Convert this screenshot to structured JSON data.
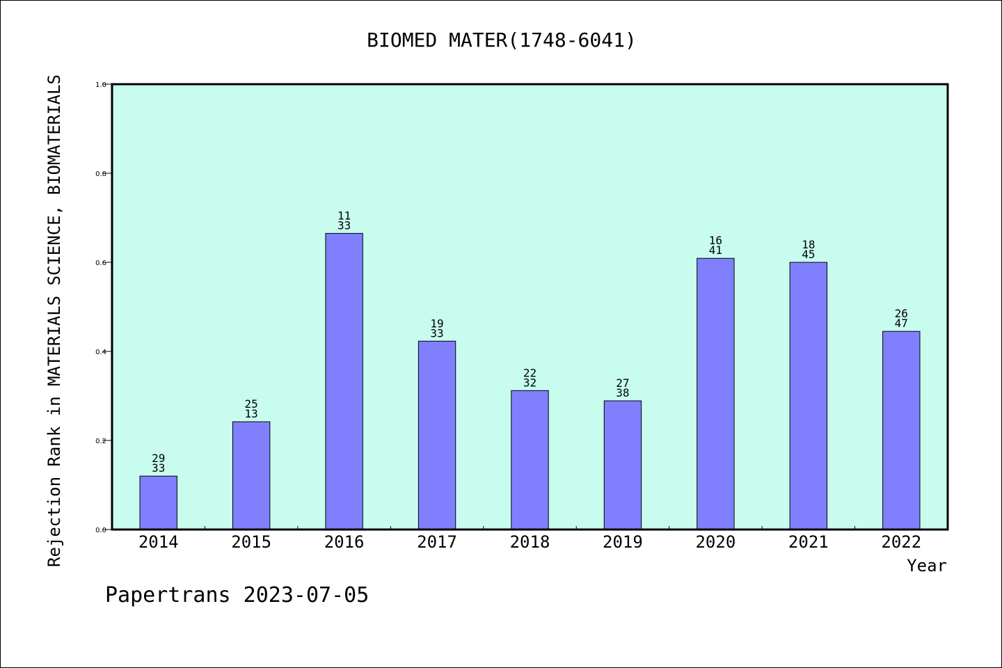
{
  "chart_data": {
    "type": "bar",
    "title": "BIOMED MATER(1748-6041)",
    "ylabel": "Rejection Rank in MATERIALS SCIENCE, BIOMATERIALS",
    "xlabel": "Year",
    "ylim": [
      0,
      1.0
    ],
    "yticks": [
      "0.0",
      "0.2",
      "0.4",
      "0.6",
      "0.8",
      "1.0"
    ],
    "categories": [
      "2014",
      "2015",
      "2016",
      "2017",
      "2018",
      "2019",
      "2020",
      "2021",
      "2022"
    ],
    "values": [
      0.12,
      0.242,
      0.665,
      0.423,
      0.312,
      0.289,
      0.609,
      0.6,
      0.445
    ],
    "labels_top": [
      "29",
      "25",
      "11",
      "19",
      "22",
      "27",
      "16",
      "18",
      "26"
    ],
    "labels_bottom": [
      "33",
      "13",
      "33",
      "33",
      "32",
      "38",
      "41",
      "45",
      "47"
    ],
    "grid": false,
    "colors": {
      "plot_bg": "#c8fcee",
      "bar": "#8080ff",
      "bar_edge": "#000000"
    }
  },
  "footer": "Papertrans 2023-07-05"
}
